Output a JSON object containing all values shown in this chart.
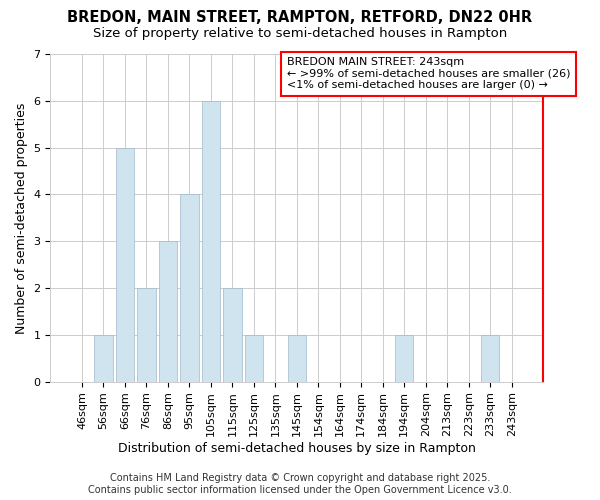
{
  "title": "BREDON, MAIN STREET, RAMPTON, RETFORD, DN22 0HR",
  "subtitle": "Size of property relative to semi-detached houses in Rampton",
  "xlabel": "Distribution of semi-detached houses by size in Rampton",
  "ylabel": "Number of semi-detached properties",
  "categories": [
    "46sqm",
    "56sqm",
    "66sqm",
    "76sqm",
    "86sqm",
    "95sqm",
    "105sqm",
    "115sqm",
    "125sqm",
    "135sqm",
    "145sqm",
    "154sqm",
    "164sqm",
    "174sqm",
    "184sqm",
    "194sqm",
    "204sqm",
    "213sqm",
    "223sqm",
    "233sqm",
    "243sqm"
  ],
  "values": [
    0,
    1,
    5,
    2,
    3,
    4,
    6,
    2,
    1,
    0,
    1,
    0,
    0,
    0,
    0,
    1,
    0,
    0,
    0,
    1,
    0
  ],
  "bar_color": "#d0e4f0",
  "bar_edge_color": "#a0b8cc",
  "ylim": [
    0,
    7
  ],
  "yticks": [
    0,
    1,
    2,
    3,
    4,
    5,
    6,
    7
  ],
  "grid_color": "#cccccc",
  "bg_color": "#ffffff",
  "annotation_title": "BREDON MAIN STREET: 243sqm",
  "annotation_line1": "← >99% of semi-detached houses are smaller (26)",
  "annotation_line2": "<1% of semi-detached houses are larger (0) →",
  "annotation_box_color": "#ff0000",
  "footer_line1": "Contains HM Land Registry data © Crown copyright and database right 2025.",
  "footer_line2": "Contains public sector information licensed under the Open Government Licence v3.0.",
  "title_fontsize": 10.5,
  "subtitle_fontsize": 9.5,
  "axis_label_fontsize": 9,
  "tick_fontsize": 8,
  "annotation_fontsize": 8,
  "footer_fontsize": 7
}
